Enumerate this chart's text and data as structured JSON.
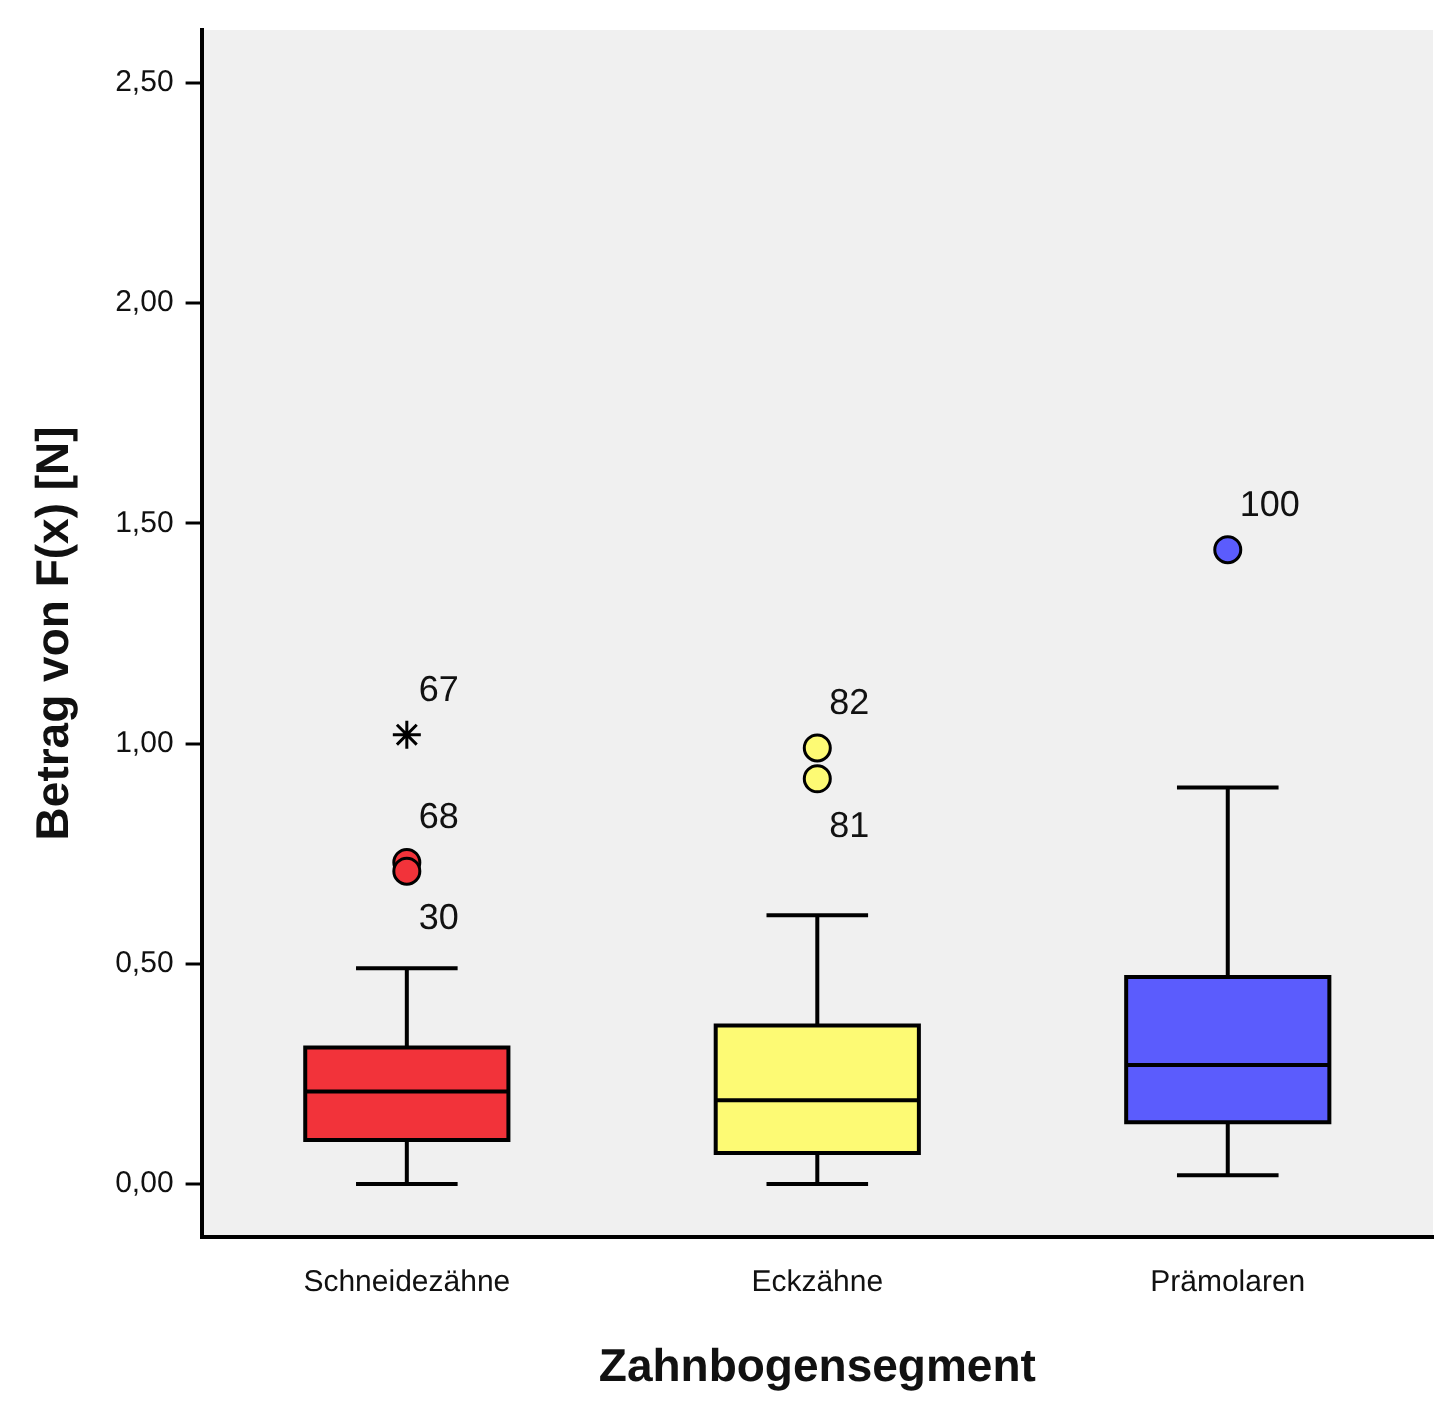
{
  "chart_data": {
    "type": "box",
    "xlabel": "Zahnbogensegment",
    "ylabel": "Betrag von F(x) [N]",
    "categories": [
      "Schneidezähne",
      "Eckzähne",
      "Prämolaren"
    ],
    "colors": [
      "#f2333a",
      "#fdfa74",
      "#5b5cfd"
    ],
    "boxes": [
      {
        "low": 0.0,
        "q1": 0.1,
        "median": 0.21,
        "q3": 0.31,
        "high": 0.49
      },
      {
        "low": 0.0,
        "q1": 0.07,
        "median": 0.19,
        "q3": 0.36,
        "high": 0.61
      },
      {
        "low": 0.02,
        "q1": 0.14,
        "median": 0.27,
        "q3": 0.47,
        "high": 0.9
      }
    ],
    "series": [
      {
        "type": "scatter",
        "x": [
          "Schneidezähne"
        ],
        "values": [
          1.02
        ],
        "color": "#000000",
        "marker": "cross"
      },
      {
        "type": "scatter",
        "x": [
          "Schneidezähne",
          "Schneidezähne"
        ],
        "values": [
          0.73,
          0.71
        ],
        "color": "#f2333a",
        "marker": "circle"
      },
      {
        "type": "scatter",
        "x": [
          "Eckzähne",
          "Eckzähne"
        ],
        "values": [
          0.99,
          0.92
        ],
        "color": "#fdfa74",
        "marker": "circle"
      },
      {
        "type": "scatter",
        "x": [
          "Prämolaren"
        ],
        "values": [
          1.44
        ],
        "color": "#5b5cfd",
        "marker": "circle"
      }
    ],
    "ylim": [
      -0.12,
      2.62
    ],
    "yticks": [
      {
        "value": 0,
        "label": "0,00"
      },
      {
        "value": 0.5,
        "label": "0,50"
      },
      {
        "value": 1,
        "label": "1,00"
      },
      {
        "value": 1.5,
        "label": "1,50"
      },
      {
        "value": 2,
        "label": "2,00"
      },
      {
        "value": 2.5,
        "label": "2,50"
      }
    ],
    "annotations": [
      {
        "text": "67",
        "x": "Schneidezähne",
        "y": 1.02
      },
      {
        "text": "68",
        "x": "Schneidezähne",
        "y": 0.73
      },
      {
        "text": "30",
        "x": "Schneidezähne",
        "y": 0.71
      },
      {
        "text": "82",
        "x": "Eckzähne",
        "y": 0.99
      },
      {
        "text": "81",
        "x": "Eckzähne",
        "y": 0.92
      },
      {
        "text": "100",
        "x": "Prämolaren",
        "y": 1.44
      }
    ],
    "grid": false,
    "legend": false
  }
}
